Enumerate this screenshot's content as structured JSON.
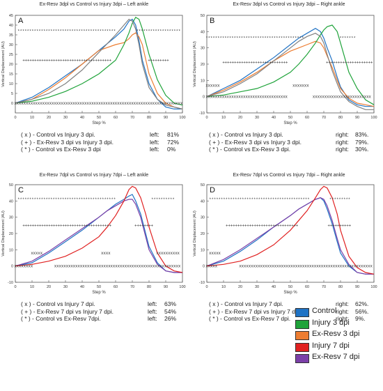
{
  "panels": [
    {
      "title": "Ex-Resv 3dpl vs Control vs Injury 3dpi – Left ankle",
      "letter": "A",
      "stats": [
        {
          "label": "( x ) - Control vs Injury 3 dpi.",
          "side": "left:",
          "value": "81%"
        },
        {
          "label": "( + ) - Ex-Resv 3 dpi vs Injury 3 dpi.",
          "side": "left:",
          "value": "72%"
        },
        {
          "label": "( * ) - Control vs Ex-Resv 3 dpi",
          "side": "left:",
          "value": "0%"
        }
      ]
    },
    {
      "title": "Ex-Resv 3dpl vs Control vs Injury 3dpi – Right ankle",
      "letter": "B",
      "stats": [
        {
          "label": "( x ) - Control vs Injury 3 dpi.",
          "side": "right:",
          "value": "83%."
        },
        {
          "label": "( + ) - Ex-Resv 3 dpi vs Injury 3 dpi.",
          "side": "right:",
          "value": "79%."
        },
        {
          "label": "( * ) - Control vs Ex-Resv 3 dpi.",
          "side": "right:",
          "value": "30%."
        }
      ]
    },
    {
      "title": "Ex-Resv 7dpl vs Control vs Injury 7dpi – Left ankle",
      "letter": "C",
      "stats": [
        {
          "label": "( x ) - Control vs Injury 7 dpi.",
          "side": "left:",
          "value": "63%"
        },
        {
          "label": "( + ) - Ex-Resv 7 dpi vs Injury 7 dpi.",
          "side": "left:",
          "value": "54%"
        },
        {
          "label": "( * ) - Control vs Ex-Resv 7dpi.",
          "side": "left:",
          "value": "26%"
        }
      ]
    },
    {
      "title": "Ex-Resv 7dpl vs Control vs Injury 7dpi – Right ankle",
      "letter": "D",
      "stats": [
        {
          "label": "( x ) - Control vs Injury 7 dpi.",
          "side": "right:",
          "value": "62%."
        },
        {
          "label": "( + ) - Ex-Resv 7 dpi vs Injury 7 dpi.",
          "side": "right:",
          "value": "56%."
        },
        {
          "label": "( * ) - Control vs Ex-Resv 7 dpi.",
          "side": "right:",
          "value": "9%."
        }
      ]
    }
  ],
  "legend": [
    {
      "label": "Control",
      "color": "#1f72c4"
    },
    {
      "label": "Injury 3 dpi",
      "color": "#1fa33a"
    },
    {
      "label": "Ex-Resv 3 dpi",
      "color": "#ed7d31"
    },
    {
      "label": "Injury 7 dpi",
      "color": "#e02020"
    },
    {
      "label": "Ex-Resv 7 dpi",
      "color": "#7b3fa8"
    }
  ],
  "chart_data": [
    {
      "type": "line",
      "title": "Ex-Resv 3dpl vs Control vs Injury 3dpi – Left ankle",
      "xlabel": "Step %",
      "ylabel": "Vertical Displacement (AU)",
      "xlim": [
        0,
        100
      ],
      "ylim": [
        -5,
        45
      ],
      "xticks": [
        0,
        10,
        20,
        30,
        40,
        50,
        60,
        70,
        80,
        90,
        100
      ],
      "yticks": [
        0,
        5,
        10,
        15,
        20,
        25,
        30,
        35,
        40,
        45
      ],
      "x": [
        0,
        10,
        20,
        30,
        40,
        50,
        60,
        65,
        68,
        70,
        72,
        74,
        76,
        80,
        85,
        90,
        95,
        100
      ],
      "series": [
        {
          "name": "Control",
          "color": "#1f72c4",
          "values": [
            0,
            3,
            8,
            14,
            20,
            27,
            34,
            38,
            42,
            43,
            40,
            32,
            22,
            10,
            2,
            -2,
            -3,
            -3
          ]
        },
        {
          "name": "Ex-Resv",
          "color": "#ed7d31",
          "values": [
            0,
            2,
            7,
            13,
            20,
            27,
            30,
            31,
            33,
            35,
            36,
            34,
            30,
            15,
            5,
            0,
            -2,
            -3
          ]
        },
        {
          "name": "Injury",
          "color": "#1fa33a",
          "values": [
            0,
            1,
            3,
            6,
            10,
            15,
            22,
            30,
            36,
            41,
            44,
            43,
            38,
            25,
            12,
            4,
            0,
            -1
          ]
        },
        {
          "name": "Gray",
          "color": "#808080",
          "values": [
            0,
            2,
            5,
            10,
            17,
            26,
            35,
            40,
            43,
            42,
            38,
            30,
            20,
            8,
            2,
            -1,
            -2,
            -3
          ]
        }
      ],
      "markers": [
        {
          "symbol": "*",
          "y": 37,
          "ranges": [
            [
              2,
              60
            ],
            [
              73,
              99
            ]
          ]
        },
        {
          "symbol": "+",
          "y": 22,
          "ranges": [
            [
              5,
              58
            ],
            [
              80,
              92
            ]
          ]
        },
        {
          "symbol": "x",
          "y": 0,
          "ranges": [
            [
              0,
              100
            ]
          ]
        }
      ]
    },
    {
      "type": "line",
      "title": "Ex-Resv 3dpl vs Control vs Injury 3dpi – Right ankle",
      "xlabel": "Step %",
      "ylabel": "Vertical Displacement (AU)",
      "xlim": [
        0,
        100
      ],
      "ylim": [
        -10,
        50
      ],
      "xticks": [
        0,
        10,
        20,
        30,
        40,
        50,
        60,
        70,
        80,
        90,
        100
      ],
      "yticks": [
        -10,
        0,
        10,
        20,
        30,
        40,
        50
      ],
      "x": [
        0,
        10,
        20,
        30,
        40,
        50,
        55,
        60,
        65,
        68,
        70,
        72,
        75,
        78,
        80,
        85,
        90,
        95,
        100
      ],
      "series": [
        {
          "name": "Control",
          "color": "#1f72c4",
          "values": [
            0,
            5,
            10,
            17,
            24,
            32,
            36,
            39,
            42,
            40,
            36,
            30,
            22,
            12,
            6,
            -2,
            -5,
            -6,
            -6
          ]
        },
        {
          "name": "Ex-Resv",
          "color": "#ed7d31",
          "values": [
            0,
            4,
            9,
            15,
            22,
            28,
            30,
            32,
            34,
            33,
            30,
            25,
            18,
            10,
            5,
            -1,
            -4,
            -5,
            -6
          ]
        },
        {
          "name": "Injury",
          "color": "#1fa33a",
          "values": [
            0,
            1,
            3,
            5,
            9,
            15,
            20,
            26,
            33,
            38,
            41,
            43,
            44,
            40,
            33,
            15,
            5,
            -2,
            -5
          ]
        },
        {
          "name": "Gray",
          "color": "#808080",
          "values": [
            0,
            3,
            8,
            14,
            22,
            30,
            34,
            37,
            39,
            37,
            33,
            26,
            16,
            8,
            3,
            -3,
            -6,
            -8,
            -8
          ]
        }
      ],
      "markers": [
        {
          "symbol": "*",
          "y": 36,
          "ranges": [
            [
              0,
              58
            ],
            [
              80,
              89
            ]
          ]
        },
        {
          "symbol": "+",
          "y": 21,
          "ranges": [
            [
              10,
              48
            ],
            [
              72,
              99
            ]
          ]
        },
        {
          "symbol": "x",
          "y": 7,
          "ranges": [
            [
              0,
              8
            ],
            [
              52,
              61
            ]
          ]
        },
        {
          "symbol": "x",
          "y": 0,
          "ranges": [
            [
              0,
              48
            ],
            [
              64,
              99
            ]
          ]
        }
      ]
    },
    {
      "type": "line",
      "title": "Ex-Resv 7dpl vs Control vs Injury 7dpi – Left ankle",
      "xlabel": "Step %",
      "ylabel": "Vertical Displacement (AU)",
      "xlim": [
        0,
        100
      ],
      "ylim": [
        -10,
        50
      ],
      "xticks": [
        0,
        10,
        20,
        30,
        40,
        50,
        60,
        70,
        80,
        90,
        100
      ],
      "yticks": [
        -10,
        0,
        10,
        20,
        30,
        40,
        50
      ],
      "x": [
        0,
        10,
        20,
        30,
        40,
        50,
        55,
        60,
        65,
        68,
        70,
        72,
        75,
        78,
        80,
        85,
        90,
        95,
        100
      ],
      "series": [
        {
          "name": "Control",
          "color": "#1f72c4",
          "values": [
            0,
            2,
            8,
            15,
            22,
            30,
            34,
            38,
            41,
            43,
            44,
            40,
            32,
            20,
            12,
            2,
            -3,
            -4,
            -4
          ]
        },
        {
          "name": "Ex-Resv",
          "color": "#7b3fa8",
          "values": [
            0,
            3,
            9,
            16,
            23,
            30,
            34,
            37,
            40,
            41,
            41,
            38,
            30,
            18,
            10,
            1,
            -3,
            -4,
            -4
          ]
        },
        {
          "name": "Injury",
          "color": "#e02020",
          "values": [
            0,
            1,
            3,
            6,
            11,
            18,
            24,
            31,
            40,
            47,
            49,
            48,
            42,
            32,
            24,
            8,
            0,
            -3,
            -4
          ]
        }
      ],
      "markers": [
        {
          "symbol": "*",
          "y": 41,
          "ranges": [
            [
              2,
              60
            ],
            [
              82,
              96
            ]
          ]
        },
        {
          "symbol": "+",
          "y": 25,
          "ranges": [
            [
              5,
              57
            ],
            [
              72,
              82
            ]
          ]
        },
        {
          "symbol": "x",
          "y": 8,
          "ranges": [
            [
              10,
              16
            ],
            [
              52,
              57
            ],
            [
              85,
              99
            ]
          ]
        },
        {
          "symbol": "x",
          "y": 0,
          "ranges": [
            [
              0,
              10
            ],
            [
              24,
              99
            ]
          ]
        }
      ]
    },
    {
      "type": "line",
      "title": "Ex-Resv 7dpl vs Control vs Injury 7dpi – Right ankle",
      "xlabel": "Step %",
      "ylabel": "Vertical Displacement (AU)",
      "xlim": [
        0,
        100
      ],
      "ylim": [
        -10,
        50
      ],
      "xticks": [
        0,
        10,
        20,
        30,
        40,
        50,
        60,
        70,
        80,
        90,
        100
      ],
      "yticks": [
        -10,
        0,
        10,
        20,
        30,
        40,
        50
      ],
      "x": [
        0,
        10,
        20,
        30,
        40,
        50,
        55,
        60,
        65,
        68,
        70,
        72,
        75,
        78,
        80,
        85,
        90,
        95,
        100
      ],
      "series": [
        {
          "name": "Control",
          "color": "#1f72c4",
          "values": [
            0,
            3,
            9,
            16,
            24,
            31,
            35,
            38,
            41,
            42,
            40,
            35,
            26,
            15,
            8,
            0,
            -4,
            -5,
            -5
          ]
        },
        {
          "name": "Ex-Resv",
          "color": "#7b3fa8",
          "values": [
            0,
            4,
            10,
            17,
            24,
            31,
            35,
            38,
            41,
            42,
            41,
            37,
            28,
            17,
            10,
            1,
            -4,
            -5,
            -5
          ]
        },
        {
          "name": "Injury",
          "color": "#e02020",
          "values": [
            0,
            1,
            3,
            7,
            13,
            22,
            28,
            34,
            42,
            47,
            49,
            48,
            42,
            32,
            22,
            6,
            -1,
            -4,
            -5
          ]
        }
      ],
      "markers": [
        {
          "symbol": "*",
          "y": 41,
          "ranges": [
            [
              2,
              62
            ],
            [
              74,
              86
            ]
          ]
        },
        {
          "symbol": "+",
          "y": 25,
          "ranges": [
            [
              12,
              55
            ],
            [
              73,
              86
            ]
          ]
        },
        {
          "symbol": "x",
          "y": 8,
          "ranges": [
            [
              2,
              8
            ]
          ]
        },
        {
          "symbol": "x",
          "y": 0,
          "ranges": [
            [
              0,
              6
            ],
            [
              20,
              99
            ]
          ]
        }
      ]
    }
  ]
}
